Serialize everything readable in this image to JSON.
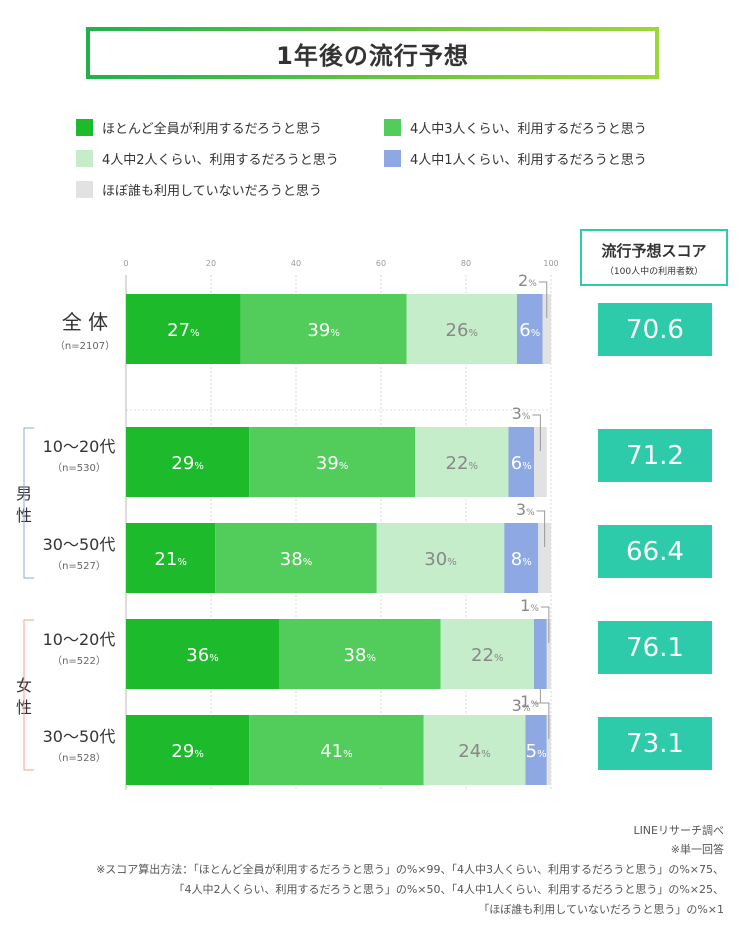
{
  "title": "1年後の流行予想",
  "legend": [
    {
      "label": "ほとんど全員が利用するだろうと思う",
      "color": "#1dbb2b"
    },
    {
      "label": "4人中3人くらい、利用するだろうと思う",
      "color": "#52cc5a"
    },
    {
      "label": "4人中2人くらい、利用するだろうと思う",
      "color": "#c6edca"
    },
    {
      "label": "4人中1人くらい、利用するだろうと思う",
      "color": "#8ea8e4"
    },
    {
      "label": "ほぼ誰も利用していないだろうと思う",
      "color": "#e2e2e2"
    }
  ],
  "score_header": {
    "title": "流行予想スコア",
    "subtitle": "（100人中の利用者数）"
  },
  "groups": {
    "male": "男\n性",
    "female": "女\n性"
  },
  "chart_data": {
    "type": "bar",
    "orientation": "horizontal",
    "stacked": true,
    "xlim": [
      0,
      100
    ],
    "xticks": [
      "0",
      "20",
      "40",
      "60",
      "80",
      "100"
    ],
    "unit": "%",
    "categories": [
      {
        "name": "全 体",
        "sample": "（n=2107）"
      },
      {
        "name": "10〜20代",
        "sample": "（n=530）"
      },
      {
        "name": "30〜50代",
        "sample": "（n=527）"
      },
      {
        "name": "10〜20代",
        "sample": "（n=522）"
      },
      {
        "name": "30〜50代",
        "sample": "（n=528）"
      }
    ],
    "series": [
      {
        "name": "ほとんど全員が利用するだろうと思う",
        "values": [
          27,
          29,
          21,
          36,
          29
        ]
      },
      {
        "name": "4人中3人くらい、利用するだろうと思う",
        "values": [
          39,
          39,
          38,
          38,
          41
        ]
      },
      {
        "name": "4人中2人くらい、利用するだろうと思う",
        "values": [
          26,
          22,
          30,
          22,
          24
        ]
      },
      {
        "name": "4人中1人くらい、利用するだろうと思う",
        "values": [
          6,
          6,
          8,
          3,
          5
        ]
      },
      {
        "name": "ほぼ誰も利用していないだろうと思う",
        "values": [
          2,
          3,
          3,
          1,
          1
        ]
      }
    ],
    "scores": [
      "70.6",
      "71.2",
      "66.4",
      "76.1",
      "73.1"
    ]
  },
  "footer": [
    "LINEリサーチ調べ",
    "※単一回答",
    "※スコア算出方法：「ほとんど全員が利用するだろうと思う」の%×99、「4人中3人くらい、利用するだろうと思う」の%×75、",
    "「4人中2人くらい、利用するだろうと思う」の%×50、「4人中1人くらい、利用するだろうと思う」の%×25、",
    "「ほぼ誰も利用していないだろうと思う」の%×1"
  ]
}
